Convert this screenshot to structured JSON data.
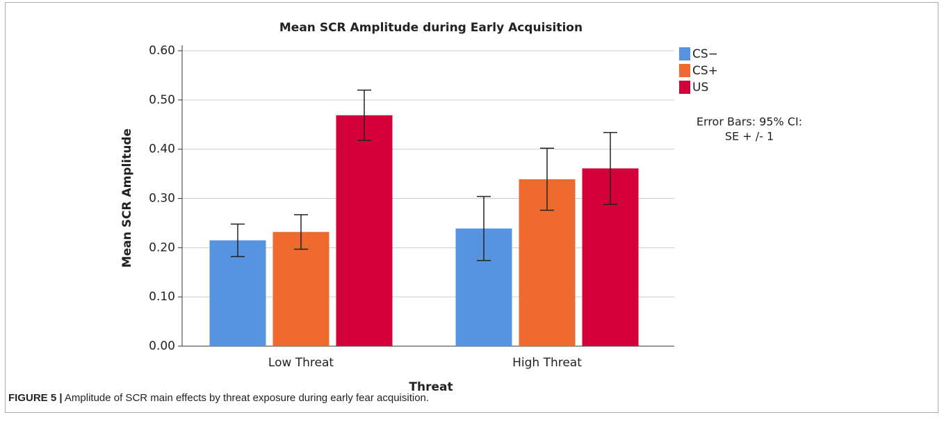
{
  "chart_data": {
    "type": "bar",
    "title": "Mean SCR Amplitude during Early Acquisition",
    "x_label": "Threat",
    "y_label": "Mean SCR Amplitude",
    "categories": [
      "Low Threat",
      "High Threat"
    ],
    "series": [
      {
        "name": "CS−",
        "color": "#5793e0",
        "values": [
          0.215,
          0.239
        ],
        "errors": [
          0.033,
          0.065
        ]
      },
      {
        "name": "CS+",
        "color": "#ee6a2f",
        "values": [
          0.232,
          0.339
        ],
        "errors": [
          0.035,
          0.063
        ]
      },
      {
        "name": "US",
        "color": "#d4003a",
        "values": [
          0.469,
          0.361
        ],
        "errors": [
          0.051,
          0.073
        ]
      }
    ],
    "ylim": [
      0,
      0.6
    ],
    "yticks": [
      {
        "value": 0,
        "label": "0.00"
      },
      {
        "value": 0.1,
        "label": "0.10"
      },
      {
        "value": 0.2,
        "label": "0.20"
      },
      {
        "value": 0.3,
        "label": "0.30"
      },
      {
        "value": 0.4,
        "label": "0.40"
      },
      {
        "value": 0.5,
        "label": "0.50"
      },
      {
        "value": 0.6,
        "label": "0.60"
      }
    ],
    "grid": true,
    "legend": "right",
    "annotation": [
      "Error Bars: 95% CI:",
      "SE + /- 1"
    ]
  },
  "caption": {
    "label": "FIGURE 5 |",
    "text": "Amplitude of SCR main effects by threat exposure during early fear acquisition."
  }
}
